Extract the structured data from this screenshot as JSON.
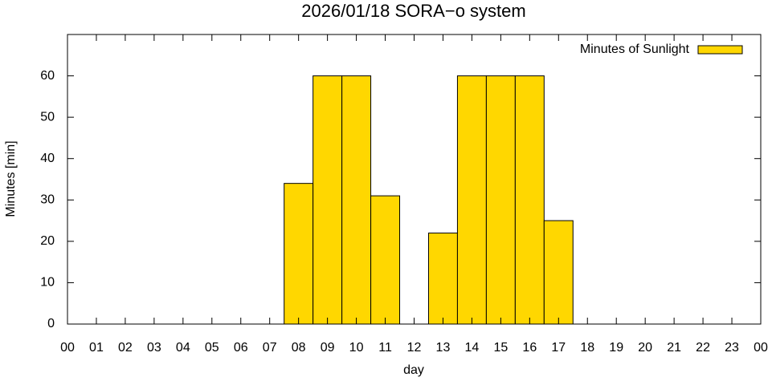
{
  "chart_data": {
    "type": "bar",
    "title": "2026/01/18 SORA−o system",
    "x_label": "day",
    "y_label": "Minutes [min]",
    "x": [
      8,
      9,
      10,
      11,
      12,
      13,
      14,
      15,
      16,
      17
    ],
    "series": [
      {
        "name": "Minutes of Sunlight",
        "color": "#ffd700",
        "values": [
          34,
          60,
          60,
          31,
          0,
          22,
          60,
          60,
          60,
          25
        ]
      }
    ],
    "xlim": [
      0,
      24
    ],
    "xticks": [
      {
        "value": 0,
        "label": "00"
      },
      {
        "value": 1,
        "label": "01"
      },
      {
        "value": 2,
        "label": "02"
      },
      {
        "value": 3,
        "label": "03"
      },
      {
        "value": 4,
        "label": "04"
      },
      {
        "value": 5,
        "label": "05"
      },
      {
        "value": 6,
        "label": "06"
      },
      {
        "value": 7,
        "label": "07"
      },
      {
        "value": 8,
        "label": "08"
      },
      {
        "value": 9,
        "label": "09"
      },
      {
        "value": 10,
        "label": "10"
      },
      {
        "value": 11,
        "label": "11"
      },
      {
        "value": 12,
        "label": "12"
      },
      {
        "value": 13,
        "label": "13"
      },
      {
        "value": 14,
        "label": "14"
      },
      {
        "value": 15,
        "label": "15"
      },
      {
        "value": 16,
        "label": "16"
      },
      {
        "value": 17,
        "label": "17"
      },
      {
        "value": 18,
        "label": "18"
      },
      {
        "value": 19,
        "label": "19"
      },
      {
        "value": 20,
        "label": "20"
      },
      {
        "value": 21,
        "label": "21"
      },
      {
        "value": 22,
        "label": "22"
      },
      {
        "value": 23,
        "label": "23"
      },
      {
        "value": 24,
        "label": "00"
      }
    ],
    "ylim": [
      0,
      70
    ],
    "yticks": [
      0,
      10,
      20,
      30,
      40,
      50,
      60
    ],
    "legend": "top-right"
  }
}
